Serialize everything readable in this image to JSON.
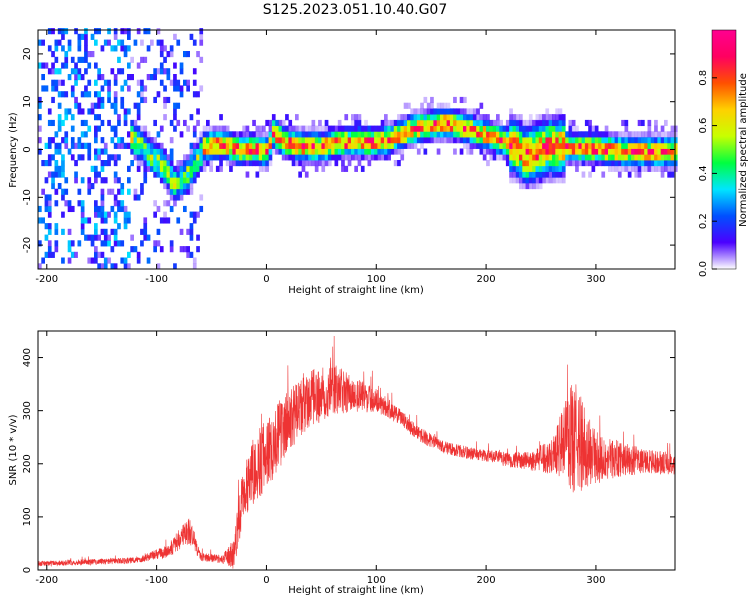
{
  "title": "S125.2023.051.10.40.G07",
  "chart_data": [
    {
      "type": "heatmap",
      "name": "spectrogram",
      "xlabel": "Height of straight line (km)",
      "ylabel": "Frequency (Hz)",
      "xlim": [
        -208,
        372
      ],
      "ylim": [
        -25,
        25
      ],
      "xticks": [
        -200,
        -100,
        0,
        100,
        200,
        300
      ],
      "yticks": [
        -20,
        -10,
        0,
        10,
        20
      ],
      "colorbar": {
        "label": "Normalized spectral amplitude",
        "range": [
          0,
          1
        ],
        "ticks": [
          0.0,
          0.2,
          0.4,
          0.6,
          0.8
        ],
        "tick_labels": [
          "0.0",
          "0.2",
          "0.4",
          "0.6",
          "0.8"
        ],
        "colormap": [
          "#ffffff",
          "#4b00ff",
          "#0050ff",
          "#00e5ff",
          "#00ff40",
          "#c8ff00",
          "#ffd000",
          "#ff5000",
          "#ff0060",
          "#ff0090"
        ]
      },
      "ridge": {
        "x": [
          -125,
          -110,
          -95,
          -85,
          -75,
          -65,
          -58,
          -50,
          -40,
          -30,
          -15,
          0,
          5,
          15,
          30,
          50,
          65,
          80,
          100,
          115,
          130,
          145,
          160,
          175,
          190,
          205,
          215,
          225,
          235,
          245,
          255,
          270,
          300,
          330,
          372
        ],
        "y": [
          2,
          -1,
          -4,
          -8,
          -6,
          -3,
          0,
          0.5,
          0.5,
          -0.5,
          -0.5,
          -1,
          3,
          1,
          0,
          0,
          1,
          1,
          1,
          2,
          3.5,
          4.5,
          5,
          4.5,
          3,
          2,
          1,
          0,
          -2,
          -1,
          0,
          0,
          -0.5,
          -1,
          -1
        ],
        "peak_from_x": -60
      }
    },
    {
      "type": "line",
      "name": "snr",
      "xlabel": "Height of straight line (km)",
      "ylabel": "SNR (10 * v/v)",
      "xlim": [
        -208,
        372
      ],
      "ylim": [
        0,
        450
      ],
      "xticks": [
        -200,
        -100,
        0,
        100,
        200,
        300
      ],
      "yticks": [
        0,
        100,
        200,
        300,
        400
      ],
      "color": "#ee3333",
      "trend": {
        "x": [
          -208,
          -120,
          -90,
          -70,
          -60,
          -40,
          -30,
          -20,
          0,
          20,
          40,
          60,
          80,
          100,
          120,
          140,
          160,
          180,
          200,
          220,
          240,
          260,
          270,
          280,
          290,
          300,
          320,
          340,
          372
        ],
        "y": [
          12,
          18,
          35,
          75,
          25,
          20,
          30,
          160,
          220,
          280,
          320,
          340,
          330,
          320,
          290,
          255,
          232,
          222,
          215,
          208,
          205,
          215,
          240,
          250,
          230,
          210,
          210,
          205,
          200
        ]
      },
      "noise": {
        "x": [
          -208,
          -120,
          -90,
          -70,
          -60,
          -40,
          -30,
          -20,
          0,
          20,
          40,
          60,
          80,
          100,
          120,
          140,
          160,
          180,
          200,
          220,
          240,
          260,
          270,
          280,
          290,
          300,
          320,
          340,
          372
        ],
        "amplitude": [
          5,
          6,
          12,
          28,
          8,
          8,
          30,
          60,
          70,
          60,
          55,
          50,
          35,
          22,
          16,
          14,
          12,
          12,
          12,
          14,
          18,
          35,
          70,
          110,
          80,
          50,
          35,
          25,
          20
        ]
      }
    }
  ]
}
